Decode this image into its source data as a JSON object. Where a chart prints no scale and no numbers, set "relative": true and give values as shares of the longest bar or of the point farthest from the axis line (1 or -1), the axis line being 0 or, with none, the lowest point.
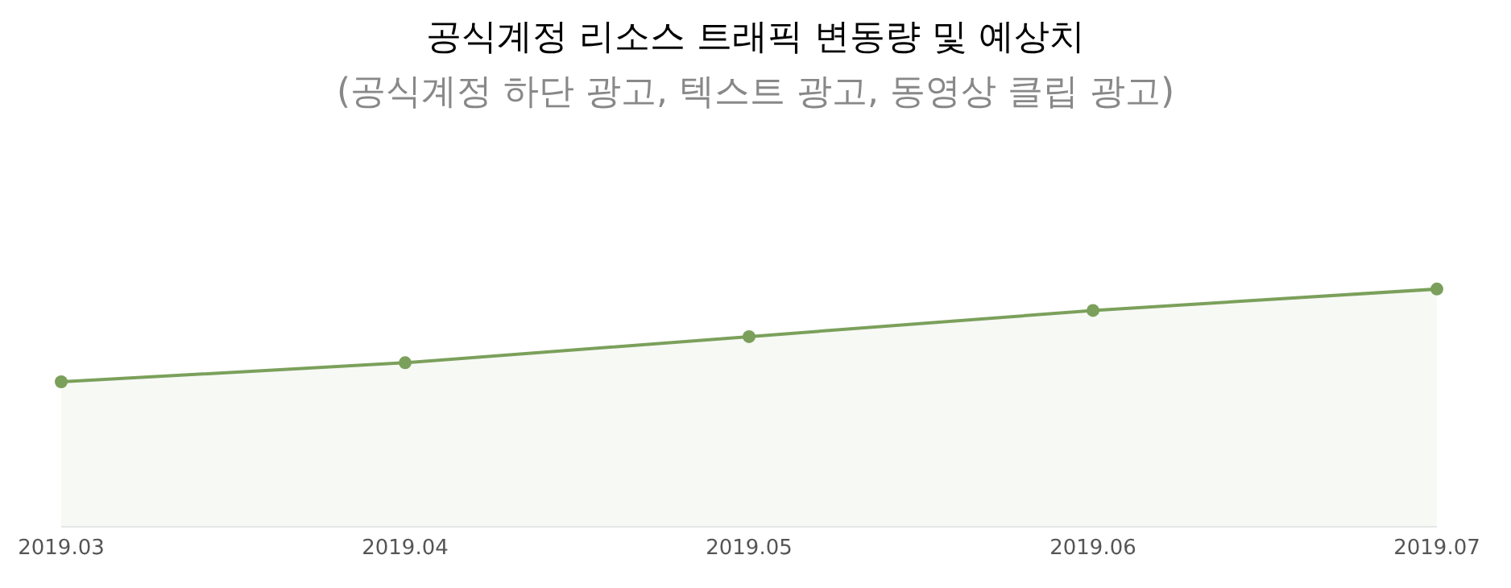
{
  "chart_data": {
    "type": "area",
    "title": "공식계정 리소스 트래픽 변동량 및 예상치",
    "subtitle": "(공식계정 하단 광고, 텍스트 광고, 동영상 클립 광고)",
    "categories": [
      "2019.03",
      "2019.04",
      "2019.05",
      "2019.06",
      "2019.07"
    ],
    "relative": true,
    "series": [
      {
        "color": "#7ba05b",
        "values": [
          0.61,
          0.69,
          0.8,
          0.91,
          1
        ]
      }
    ],
    "marker": "circle"
  }
}
